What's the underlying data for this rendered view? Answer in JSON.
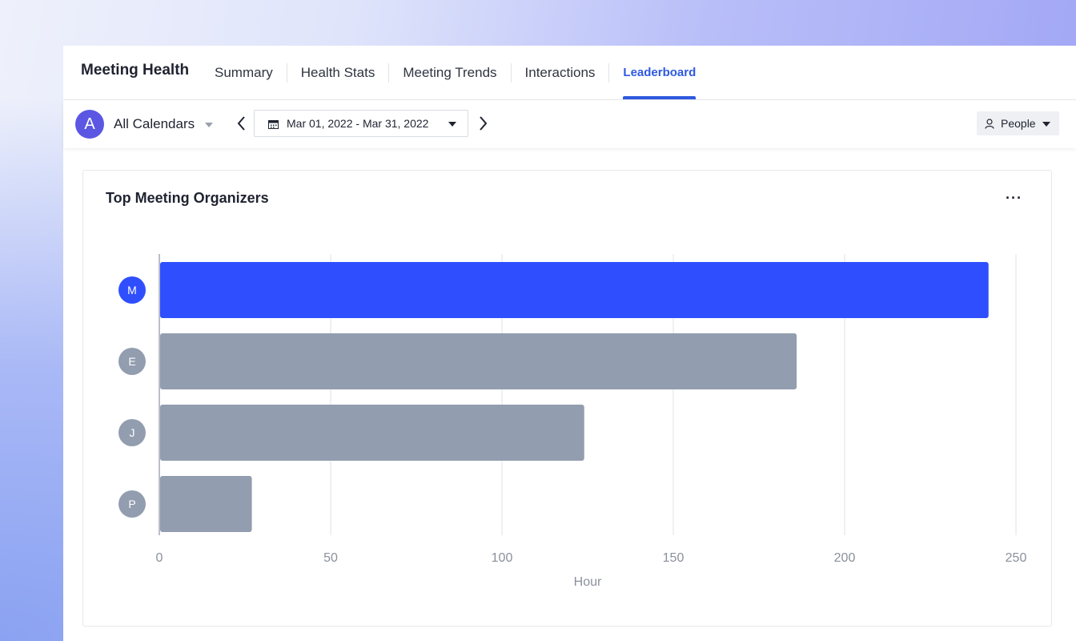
{
  "nav": {
    "title": "Meeting Health",
    "tabs": [
      {
        "label": "Summary"
      },
      {
        "label": "Health Stats"
      },
      {
        "label": "Meeting Trends"
      },
      {
        "label": "Interactions"
      },
      {
        "label": "Leaderboard",
        "active": true
      }
    ]
  },
  "toolbar": {
    "calendar_avatar": "A",
    "calendar_label": "All Calendars",
    "date_range": "Mar 01, 2022 - Mar 31, 2022",
    "view_label": "People"
  },
  "card": {
    "title": "Top Meeting Organizers",
    "menu": "···"
  },
  "colors": {
    "accent": "#2e59e0",
    "highlight_bar": "#2f4fff",
    "default_bar": "#929daf",
    "avatar_highlight": "#2f4fff",
    "avatar_default": "#929daf"
  },
  "chart_data": {
    "type": "bar",
    "orientation": "horizontal",
    "categories": [
      "M",
      "E",
      "J",
      "P"
    ],
    "values": [
      242,
      186,
      124,
      27
    ],
    "highlight_index": 0,
    "xlabel": "Hour",
    "xlim": [
      0,
      250
    ],
    "xticks": [
      0,
      50,
      100,
      150,
      200,
      250
    ],
    "grid": true
  }
}
